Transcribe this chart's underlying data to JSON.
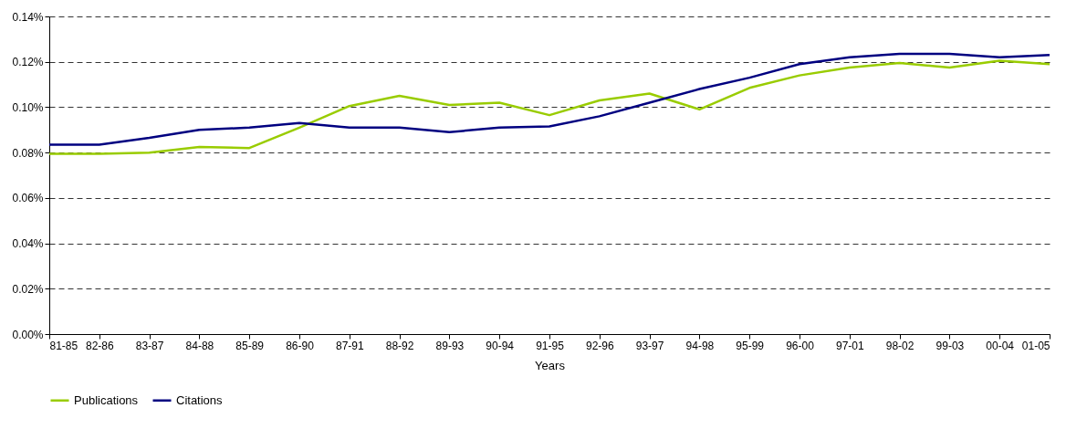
{
  "chart_data": {
    "type": "line",
    "xlabel": "Years",
    "categories": [
      "81-85",
      "82-86",
      "83-87",
      "84-88",
      "85-89",
      "86-90",
      "87-91",
      "88-92",
      "89-93",
      "90-94",
      "91-95",
      "92-96",
      "93-97",
      "94-98",
      "95-99",
      "96-00",
      "97-01",
      "98-02",
      "99-03",
      "00-04",
      "01-05"
    ],
    "series": [
      {
        "name": "Publications",
        "color": "#99cc00",
        "values": [
          0.0795,
          0.0795,
          0.08,
          0.0825,
          0.082,
          0.091,
          0.1005,
          0.105,
          0.101,
          0.102,
          0.0965,
          0.103,
          0.106,
          0.099,
          0.1085,
          0.114,
          0.1175,
          0.1195,
          0.1175,
          0.1205,
          0.119
        ]
      },
      {
        "name": "Citations",
        "color": "#000080",
        "values": [
          0.0835,
          0.0835,
          0.0865,
          0.09,
          0.091,
          0.093,
          0.091,
          0.091,
          0.089,
          0.091,
          0.0915,
          0.096,
          0.102,
          0.108,
          0.113,
          0.119,
          0.122,
          0.1235,
          0.1235,
          0.122,
          0.123
        ]
      }
    ],
    "ylim": [
      0,
      0.14
    ],
    "yticks": [
      {
        "value": 0,
        "label": "0.00%"
      },
      {
        "value": 0.02,
        "label": "0.02%"
      },
      {
        "value": 0.04,
        "label": "0.04%"
      },
      {
        "value": 0.06,
        "label": "0.06%"
      },
      {
        "value": 0.08,
        "label": "0.08%"
      },
      {
        "value": 0.1,
        "label": "0.10%"
      },
      {
        "value": 0.12,
        "label": "0.12%"
      },
      {
        "value": 0.14,
        "label": "0.14%"
      }
    ],
    "grid": "y",
    "legend": "bottom",
    "marker": "none",
    "line_style": "solid"
  }
}
